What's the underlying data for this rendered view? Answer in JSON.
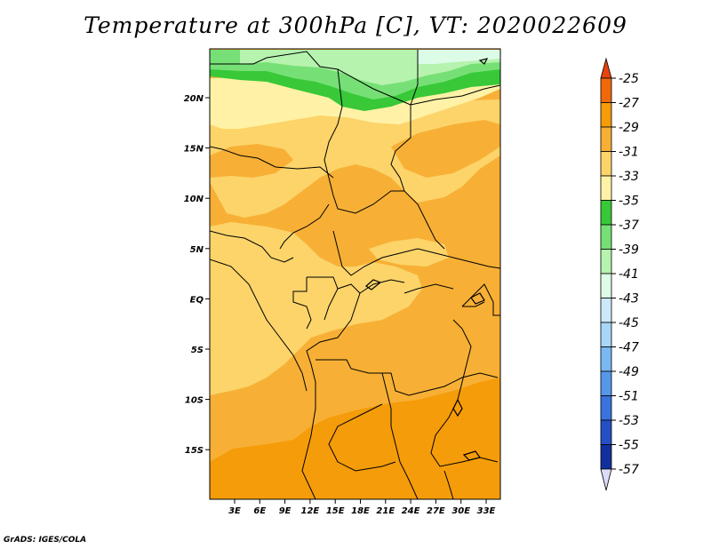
{
  "title": "Temperature at 300hPa [C], VT: 2020022609",
  "footer": "GrADS: IGES/COLA",
  "map": {
    "lat_ticks": [
      "20N",
      "15N",
      "10N",
      "5N",
      "EQ",
      "5S",
      "10S",
      "15S"
    ],
    "lon_ticks": [
      "3E",
      "6E",
      "9E",
      "12E",
      "15E",
      "18E",
      "21E",
      "24E",
      "27E",
      "30E",
      "33E"
    ]
  },
  "colorbar": {
    "labels": [
      "-25",
      "-27",
      "-29",
      "-31",
      "-33",
      "-35",
      "-37",
      "-39",
      "-41",
      "-43",
      "-45",
      "-47",
      "-49",
      "-51",
      "-53",
      "-55",
      "-57"
    ],
    "colors": {
      "top_arrow": "#e8430c",
      "bottom_arrow": "#dcdcf8",
      "bins": [
        "#f06a0a",
        "#f59c0a",
        "#f7b035",
        "#fcd46a",
        "#fff2a6",
        "#38c838",
        "#76e076",
        "#b6f3ae",
        "#ddfce8",
        "#cde8fb",
        "#a8d6f8",
        "#7ab8f2",
        "#5597ea",
        "#3a73dd",
        "#2450c4",
        "#12309c",
        "#080a6e"
      ]
    }
  },
  "colors": {
    "t_minus_27": "#f59c0a",
    "t_minus_29": "#f7b035",
    "t_minus_31": "#fcd46a",
    "t_minus_33": "#fff2a6",
    "t_minus_35": "#38c838",
    "t_minus_37": "#76e076",
    "t_minus_39": "#b6f3ae",
    "t_minus_41": "#ddfce8"
  }
}
